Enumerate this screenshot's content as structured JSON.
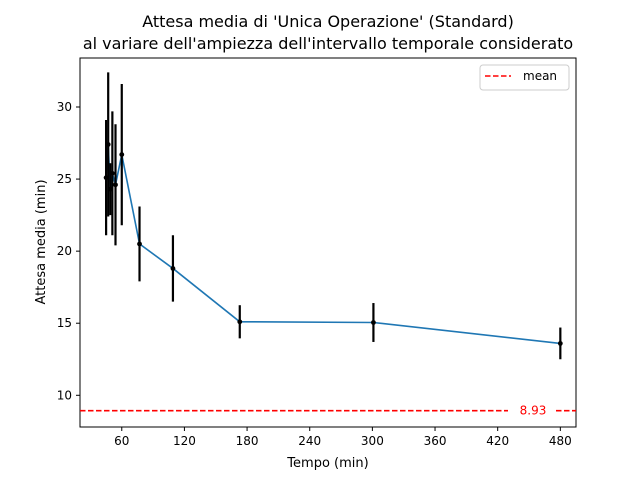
{
  "chart_data": {
    "type": "line",
    "title_line1": "Attesa media di 'Unica Operazione' (Standard)",
    "title_line2": "al variare dell'ampiezza dell'intervallo temporale considerato",
    "xlabel": "Tempo (min)",
    "ylabel": "Attesa media (min)",
    "xlim": [
      20,
      495
    ],
    "ylim": [
      7.8,
      33.4
    ],
    "xticks": [
      60,
      120,
      180,
      240,
      300,
      360,
      420,
      480
    ],
    "yticks": [
      10,
      15,
      20,
      25,
      30
    ],
    "series": [
      {
        "x": [
          45,
          47,
          49,
          51,
          54,
          60,
          77,
          109,
          173,
          301,
          480
        ],
        "y": [
          25.1,
          27.4,
          24.3,
          25.4,
          24.6,
          26.7,
          20.5,
          18.8,
          15.1,
          15.05,
          13.6
        ],
        "err": [
          4.0,
          5.0,
          1.8,
          4.3,
          4.2,
          4.9,
          2.6,
          2.3,
          1.15,
          1.35,
          1.1
        ],
        "color": "#1f77b4",
        "errcolor": "#000000"
      }
    ],
    "mean": {
      "value": 8.93,
      "label": "8.93",
      "legend": "mean",
      "color": "#ff0000"
    },
    "legend_position": "top-right",
    "grid": false
  }
}
